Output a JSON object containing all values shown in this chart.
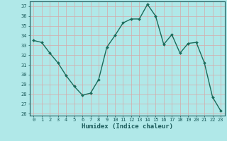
{
  "x": [
    0,
    1,
    2,
    3,
    4,
    5,
    6,
    7,
    8,
    9,
    10,
    11,
    12,
    13,
    14,
    15,
    16,
    17,
    18,
    19,
    20,
    21,
    22,
    23
  ],
  "y": [
    33.5,
    33.3,
    32.2,
    31.2,
    29.9,
    28.8,
    27.9,
    28.1,
    29.5,
    32.8,
    34.0,
    35.3,
    35.7,
    35.7,
    37.2,
    36.0,
    33.1,
    34.1,
    32.2,
    33.2,
    33.3,
    31.2,
    27.7,
    26.3
  ],
  "line_color": "#1a6b5a",
  "marker_color": "#1a6b5a",
  "bg_color": "#b0e8e8",
  "grid_major_color": "#d4aaaa",
  "grid_minor_color": "#d4aaaa",
  "xlabel": "Humidex (Indice chaleur)",
  "ylim": [
    25.8,
    37.5
  ],
  "xlim": [
    -0.5,
    23.5
  ],
  "yticks": [
    26,
    27,
    28,
    29,
    30,
    31,
    32,
    33,
    34,
    35,
    36,
    37
  ],
  "xticks": [
    0,
    1,
    2,
    3,
    4,
    5,
    6,
    7,
    8,
    9,
    10,
    11,
    12,
    13,
    14,
    15,
    16,
    17,
    18,
    19,
    20,
    21,
    22,
    23
  ],
  "font_color": "#1a5a5a",
  "tick_fontsize": 5.0,
  "xlabel_fontsize": 6.5
}
